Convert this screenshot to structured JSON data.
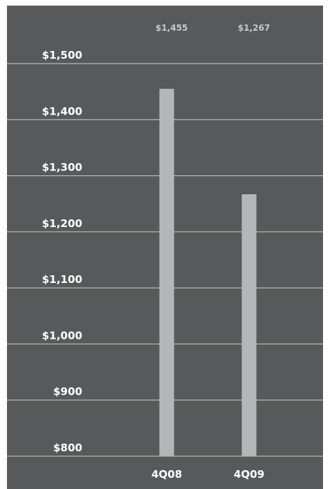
{
  "colors": {
    "panel": "#58595b",
    "bar": "#b5b6b8",
    "gridline": "#c9d4b4",
    "tick_text": "#ffffff",
    "data_label_text": "#c7c8ca"
  },
  "chart_data": {
    "type": "bar",
    "categories": [
      "4Q08",
      "4Q09"
    ],
    "values": [
      1455,
      1267
    ],
    "value_labels": [
      "$1,455",
      "$1,267"
    ],
    "title": "",
    "xlabel": "",
    "ylabel": "",
    "ylim": [
      800,
      1500
    ],
    "yticks": [
      800,
      900,
      1000,
      1100,
      1200,
      1300,
      1400,
      1500
    ],
    "ytick_labels": [
      "$800",
      "$900",
      "$1,000",
      "$1,100",
      "$1,200",
      "$1,300",
      "$1,400",
      "$1,500"
    ],
    "grid": true,
    "legend": "none"
  }
}
